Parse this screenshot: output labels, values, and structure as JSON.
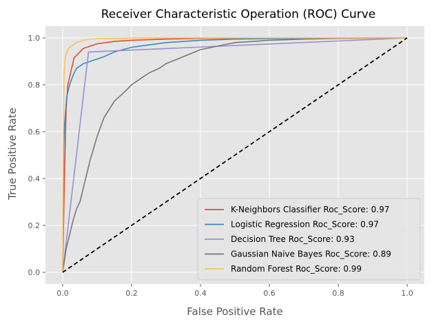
{
  "chart_data": {
    "type": "line",
    "title": "Receiver Characteristic Operation (ROC) Curve",
    "xlabel": "False Positive Rate",
    "ylabel": "True Positive Rate",
    "xlim": [
      -0.05,
      1.05
    ],
    "ylim": [
      -0.05,
      1.05
    ],
    "xticks": [
      0.0,
      0.2,
      0.4,
      0.6,
      0.8,
      1.0
    ],
    "yticks": [
      0.0,
      0.2,
      0.4,
      0.6,
      0.8,
      1.0
    ],
    "xtick_labels": [
      "0.0",
      "0.2",
      "0.4",
      "0.6",
      "0.8",
      "1.0"
    ],
    "ytick_labels": [
      "0.0",
      "0.2",
      "0.4",
      "0.6",
      "0.8",
      "1.0"
    ],
    "grid": true,
    "legend_position": "bottom-right",
    "series": [
      {
        "name": "K-Neighbors Classifier Roc_Score: 0.97",
        "color": "#E24A33",
        "x": [
          0,
          0.005,
          0.01,
          0.015,
          0.033,
          0.06,
          0.1,
          0.15,
          0.2,
          0.3,
          0.4,
          0.6,
          1.0
        ],
        "y": [
          0,
          0.4,
          0.7,
          0.8,
          0.915,
          0.955,
          0.975,
          0.985,
          0.99,
          0.995,
          0.998,
          0.999,
          1.0
        ]
      },
      {
        "name": "Logistic Regression Roc_Score: 0.97",
        "color": "#348ABD",
        "x": [
          0,
          0.003,
          0.005,
          0.008,
          0.012,
          0.02,
          0.03,
          0.04,
          0.06,
          0.08,
          0.1,
          0.12,
          0.15,
          0.2,
          0.25,
          0.3,
          0.4,
          0.5,
          0.6,
          0.8,
          1.0
        ],
        "y": [
          0,
          0.53,
          0.62,
          0.68,
          0.75,
          0.8,
          0.84,
          0.87,
          0.89,
          0.9,
          0.91,
          0.92,
          0.94,
          0.96,
          0.97,
          0.98,
          0.99,
          0.995,
          0.997,
          0.999,
          1.0
        ]
      },
      {
        "name": "Decision Tree Roc_Score: 0.93",
        "color": "#988ED5",
        "x": [
          0,
          0.075,
          1.0
        ],
        "y": [
          0,
          0.94,
          1.0
        ]
      },
      {
        "name": "Gaussian Naive Bayes Roc_Score: 0.89",
        "color": "#777777",
        "x": [
          0,
          0.01,
          0.02,
          0.03,
          0.04,
          0.05,
          0.06,
          0.07,
          0.08,
          0.1,
          0.12,
          0.15,
          0.18,
          0.2,
          0.22,
          0.25,
          0.28,
          0.3,
          0.35,
          0.4,
          0.45,
          0.5,
          0.6,
          0.7,
          0.8,
          0.9,
          1.0
        ],
        "y": [
          0,
          0.1,
          0.16,
          0.22,
          0.27,
          0.3,
          0.36,
          0.42,
          0.48,
          0.58,
          0.66,
          0.73,
          0.77,
          0.8,
          0.82,
          0.85,
          0.87,
          0.89,
          0.92,
          0.95,
          0.965,
          0.98,
          0.99,
          0.995,
          0.998,
          0.999,
          1.0
        ]
      },
      {
        "name": "Random Forest Roc_Score: 0.99",
        "color": "#FBC15E",
        "x": [
          0,
          0.002,
          0.004,
          0.006,
          0.01,
          0.015,
          0.02,
          0.03,
          0.04,
          0.06,
          0.08,
          0.1,
          0.15,
          0.2,
          0.3,
          0.5,
          1.0
        ],
        "y": [
          0,
          0.6,
          0.85,
          0.9,
          0.93,
          0.95,
          0.96,
          0.97,
          0.98,
          0.99,
          0.995,
          0.997,
          0.998,
          0.999,
          1.0,
          1.0,
          1.0
        ]
      }
    ],
    "reference_line": {
      "x": [
        0,
        1
      ],
      "y": [
        0,
        1
      ],
      "color": "#000000",
      "style": "dashed"
    }
  }
}
